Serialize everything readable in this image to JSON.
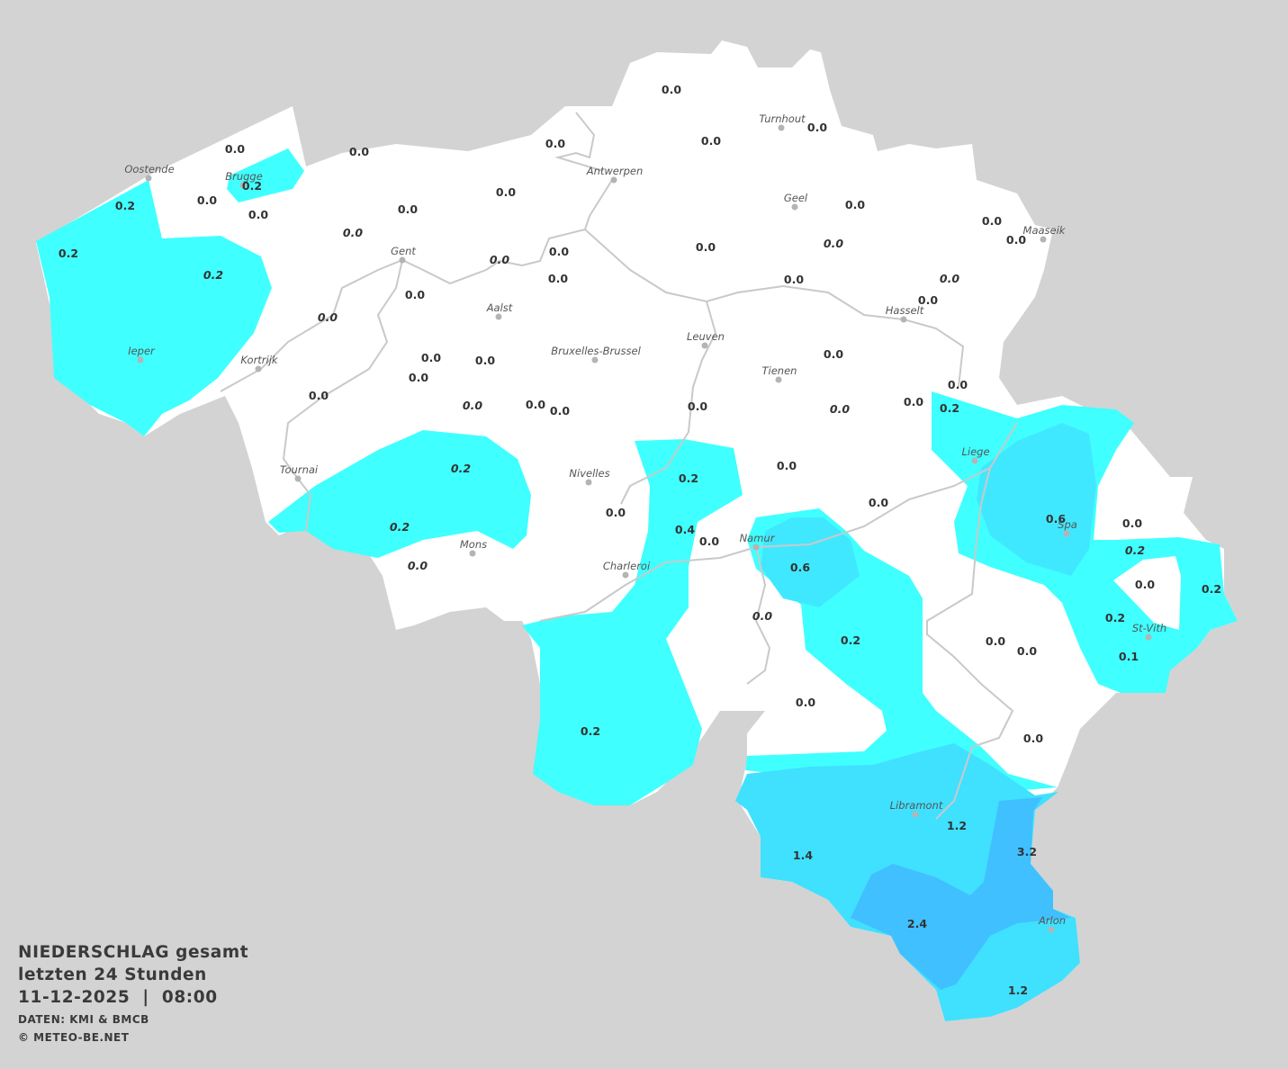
{
  "title": {
    "line1": "NIEDERSCHLAG gesamt",
    "line2": "letzten 24 Stunden",
    "datetime": "11-12-2025  |  08:00",
    "source": "DATEN: KMI & BMCB",
    "copyright": "© METEO-BE.NET"
  },
  "colors": {
    "background": "#d3d3d3",
    "land": "#ffffff",
    "precip_0_2": "#40ffff",
    "precip_0_6": "#40e6ff",
    "precip_1_2": "#40e0ff",
    "precip_2_4": "#40c0ff",
    "river": "#c9c9c9"
  },
  "unit": "mm",
  "cities": [
    "Oostende",
    "Brugge",
    "Antwerpen",
    "Turnhout",
    "Geel",
    "Maaseik",
    "Gent",
    "Aalst",
    "Hasselt",
    "Leuven",
    "Bruxelles-Brussel",
    "Ieper",
    "Kortrijk",
    "Tienen",
    "Liege",
    "Tournai",
    "Nivelles",
    "Spa",
    "Namur",
    "Mons",
    "Charleroi",
    "St-Vith",
    "Libramont",
    "Arlon"
  ],
  "station_values": [
    "0.0",
    "0.0",
    "0.0",
    "0.0",
    "0.0",
    "0.0",
    "0.2",
    "0.0",
    "0.2",
    "0.0",
    "0.0",
    "0.0",
    "0.0",
    "0.2",
    "0.2",
    "0.0",
    "0.0",
    "0.0",
    "0.0",
    "0.0",
    "0.0",
    "0.0",
    "0.0",
    "0.0",
    "0.0",
    "0.0",
    "0.0",
    "0.0",
    "0.0",
    "0.0",
    "0.0",
    "0.0",
    "0.0",
    "0.0",
    "0.0",
    "0.0",
    "0.0",
    "0.0",
    "0.0",
    "0.0",
    "0.2",
    "0.2",
    "0.2",
    "0.0",
    "0.0",
    "0.4",
    "0.0",
    "0.0",
    "0.6",
    "0.0",
    "0.2",
    "0.0",
    "0.6",
    "0.2",
    "0.0",
    "0.2",
    "0.2",
    "0.0",
    "0.2",
    "0.0",
    "0.0",
    "0.1",
    "0.0",
    "0.2",
    "0.0",
    "1.2",
    "1.4",
    "3.2",
    "2.4",
    "1.2"
  ]
}
